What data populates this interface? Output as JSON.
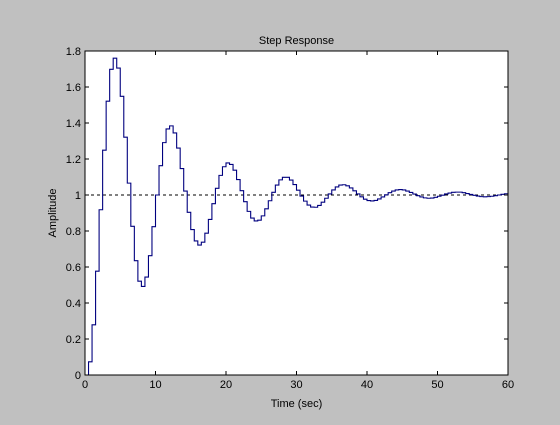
{
  "chart_data": {
    "type": "line",
    "title": "Step Response",
    "xlabel": "Time (sec)",
    "ylabel": "Amplitude",
    "xlim": [
      0,
      60
    ],
    "ylim": [
      0,
      1.8
    ],
    "xticks": [
      0,
      10,
      20,
      30,
      40,
      50,
      60
    ],
    "yticks": [
      0,
      0.2,
      0.4,
      0.6,
      0.8,
      1,
      1.2,
      1.4,
      1.6,
      1.8
    ],
    "xtick_labels": [
      "0",
      "10",
      "20",
      "30",
      "40",
      "50",
      "60"
    ],
    "ytick_labels": [
      "0",
      "0.2",
      "0.4",
      "0.6",
      "0.8",
      "1",
      "1.2",
      "1.4",
      "1.6",
      "1.8"
    ],
    "grid": false,
    "reference_line": {
      "y": 1,
      "style": "dashed",
      "color": "#000000"
    },
    "series_color": "#00007f",
    "step_style": "stairs",
    "series": [
      {
        "x": [
          0,
          0.5,
          1,
          1.5,
          2,
          2.5,
          3,
          3.5,
          4,
          4.5,
          5,
          5.5,
          6,
          6.5,
          7,
          7.5,
          8,
          8.5,
          9,
          9.5,
          10,
          10.5,
          11,
          11.5,
          12,
          12.5,
          13,
          13.5,
          14,
          14.5,
          15,
          15.5,
          16,
          16.5,
          17,
          17.5,
          18,
          18.5,
          19,
          19.5,
          20,
          20.5,
          21,
          21.5,
          22,
          22.5,
          23,
          23.5,
          24,
          24.5,
          25,
          25.5,
          26,
          26.5,
          27,
          27.5,
          28,
          28.5,
          29,
          29.5,
          30,
          30.5,
          31,
          31.5,
          32,
          32.5,
          33,
          33.5,
          34,
          34.5,
          35,
          35.5,
          36,
          36.5,
          37,
          37.5,
          38,
          38.5,
          39,
          39.5,
          40,
          40.5,
          41,
          41.5,
          42,
          42.5,
          43,
          43.5,
          44,
          44.5,
          45,
          45.5,
          46,
          46.5,
          47,
          47.5,
          48,
          48.5,
          49,
          49.5,
          50,
          50.5,
          51,
          51.5,
          52,
          52.5,
          53,
          53.5,
          54,
          54.5,
          55,
          55.5,
          56,
          56.5,
          57,
          57.5,
          58,
          58.5,
          59,
          59.5,
          60
        ],
        "y": [
          0,
          0.073,
          0.279,
          0.577,
          0.918,
          1.249,
          1.521,
          1.698,
          1.76,
          1.705,
          1.548,
          1.321,
          1.066,
          0.826,
          0.635,
          0.521,
          0.492,
          0.544,
          0.663,
          0.824,
          1,
          1.163,
          1.291,
          1.367,
          1.384,
          1.345,
          1.261,
          1.147,
          1.022,
          0.904,
          0.808,
          0.745,
          0.722,
          0.738,
          0.788,
          0.864,
          0.952,
          1.037,
          1.109,
          1.157,
          1.178,
          1.17,
          1.138,
          1.086,
          1.024,
          0.963,
          0.909,
          0.872,
          0.856,
          0.86,
          0.884,
          0.923,
          0.968,
          1.015,
          1.055,
          1.084,
          1.098,
          1.098,
          1.083,
          1.058,
          1.027,
          0.994,
          0.966,
          0.944,
          0.933,
          0.932,
          0.942,
          0.96,
          0.982,
          1.006,
          1.028,
          1.045,
          1.055,
          1.057,
          1.051,
          1.039,
          1.023,
          1.006,
          0.99,
          0.977,
          0.969,
          0.967,
          0.97,
          0.978,
          0.989,
          1.001,
          1.013,
          1.022,
          1.028,
          1.03,
          1.028,
          1.022,
          1.014,
          1.005,
          0.996,
          0.989,
          0.984,
          0.982,
          0.983,
          0.987,
          0.993,
          0.999,
          1.006,
          1.011,
          1.015,
          1.016,
          1.016,
          1.013,
          1.008,
          1.003,
          0.998,
          0.994,
          0.991,
          0.99,
          0.991,
          0.993,
          0.996,
          1,
          1.004,
          1.007,
          1.009
        ]
      }
    ]
  }
}
